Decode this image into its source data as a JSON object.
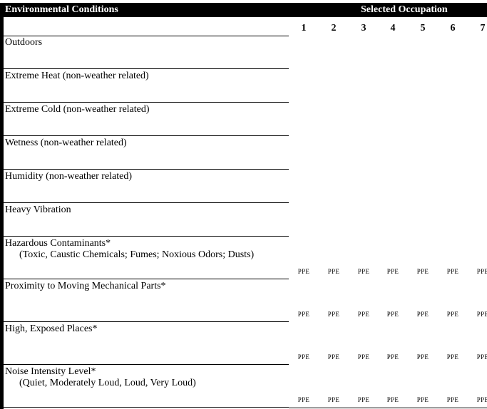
{
  "header": {
    "title": "Environmental Conditions",
    "group_label": "Selected Occupation"
  },
  "columns": [
    "1",
    "2",
    "3",
    "4",
    "5",
    "6",
    "7"
  ],
  "ppe_label": "PPE",
  "rows": [
    {
      "label": "Outdoors",
      "sub": "",
      "ppe": false
    },
    {
      "label": "Extreme Heat (non-weather related)",
      "sub": "",
      "ppe": false
    },
    {
      "label": "Extreme Cold (non-weather related)",
      "sub": "",
      "ppe": false
    },
    {
      "label": "Wetness (non-weather related)",
      "sub": "",
      "ppe": false
    },
    {
      "label": "Humidity (non-weather related)",
      "sub": "",
      "ppe": false
    },
    {
      "label": "Heavy Vibration",
      "sub": "",
      "ppe": false
    },
    {
      "label": "Hazardous Contaminants*",
      "sub": "(Toxic, Caustic Chemicals; Fumes; Noxious Odors; Dusts)",
      "ppe": true
    },
    {
      "label": "Proximity to Moving Mechanical Parts*",
      "sub": "",
      "ppe": true
    },
    {
      "label": "High, Exposed Places*",
      "sub": "",
      "ppe": true
    },
    {
      "label": "Noise Intensity Level*",
      "sub": "(Quiet, Moderately Loud, Loud, Very Loud)",
      "ppe": true
    }
  ]
}
